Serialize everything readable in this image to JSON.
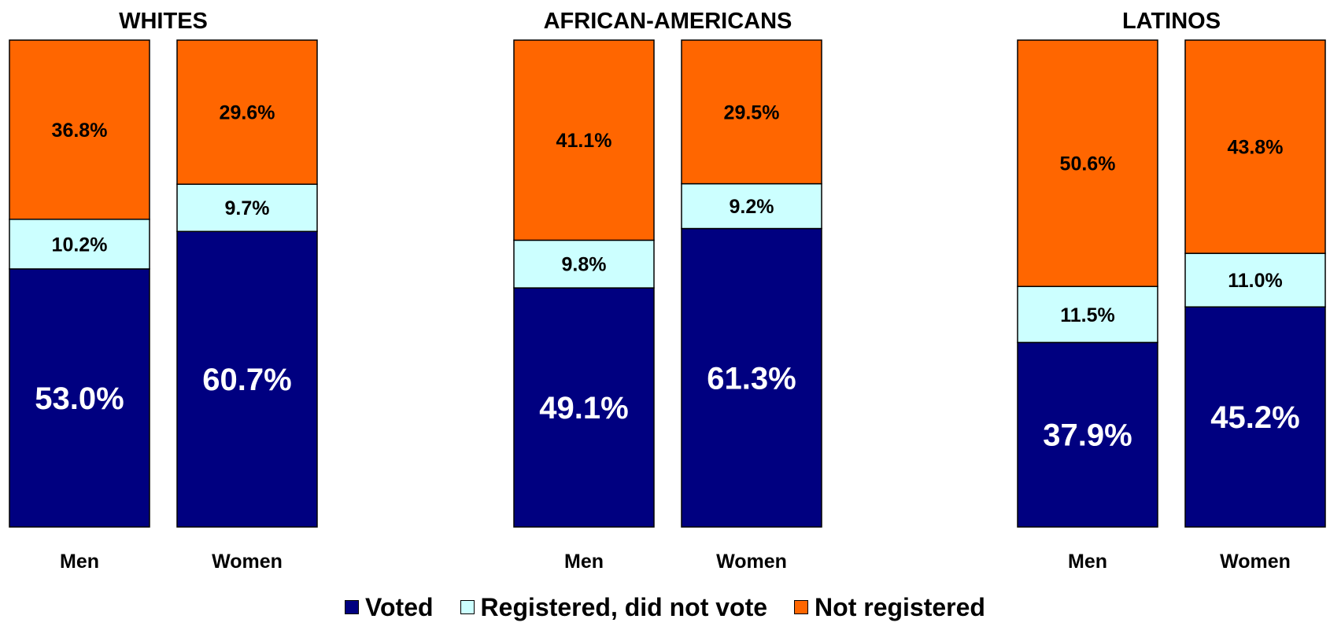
{
  "chart_data": {
    "type": "bar",
    "stacked": true,
    "groups": [
      {
        "title": "WHITES",
        "categories": [
          "Men",
          "Women"
        ]
      },
      {
        "title": "AFRICAN-AMERICANS",
        "categories": [
          "Men",
          "Women"
        ]
      },
      {
        "title": "LATINOS",
        "categories": [
          "Men",
          "Women"
        ]
      }
    ],
    "series": [
      {
        "name": "Voted",
        "color": "#000080",
        "label_color": "#ffffff",
        "label_size": "large",
        "labels": [
          [
            "53.0%",
            "60.7%"
          ],
          [
            "49.1%",
            "61.3%"
          ],
          [
            "37.9%",
            "45.2%"
          ]
        ],
        "values": [
          [
            53.0,
            60.7
          ],
          [
            49.1,
            61.3
          ],
          [
            37.9,
            45.2
          ]
        ]
      },
      {
        "name": "Registered, did not vote",
        "color": "#ccffff",
        "label_color": "#000000",
        "label_size": "small",
        "labels": [
          [
            "10.2%",
            "9.7%"
          ],
          [
            "9.8%",
            "9.2%"
          ],
          [
            "11.5%",
            "11.0%"
          ]
        ],
        "values": [
          [
            10.2,
            9.7
          ],
          [
            9.8,
            9.2
          ],
          [
            11.5,
            11.0
          ]
        ]
      },
      {
        "name": "Not registered",
        "color": "#ff6600",
        "label_color": "#000000",
        "label_size": "small",
        "labels": [
          [
            "36.8%",
            "29.6%"
          ],
          [
            "41.1%",
            "29.5%"
          ],
          [
            "50.6%",
            "43.8%"
          ]
        ],
        "values": [
          [
            36.8,
            29.6
          ],
          [
            41.1,
            29.5
          ],
          [
            50.6,
            43.8
          ]
        ]
      }
    ],
    "ylim": [
      0,
      100
    ],
    "grid": false,
    "legend_position": "bottom"
  }
}
